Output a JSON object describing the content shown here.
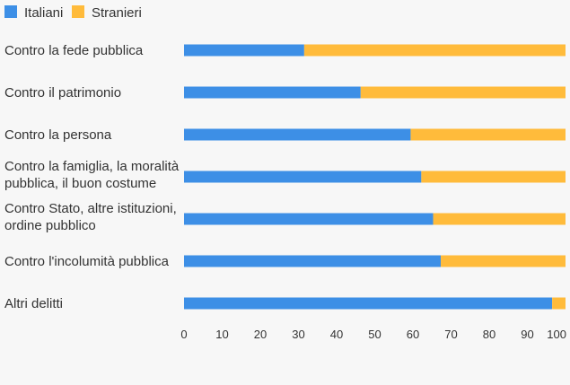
{
  "chart_data": {
    "type": "bar",
    "orientation": "horizontal",
    "stacked": true,
    "categories": [
      [
        "Contro la fede pubblica"
      ],
      [
        "Contro il patrimonio"
      ],
      [
        "Contro la persona"
      ],
      [
        "Contro la famiglia, la moralità",
        "pubblica, il buon costume"
      ],
      [
        "Contro Stato, altre istituzioni,",
        "ordine pubblico"
      ],
      [
        "Contro l'incolumità pubblica"
      ],
      [
        "Altri delitti"
      ]
    ],
    "series": [
      {
        "name": "Italiani",
        "color": "#3d8fe6",
        "values": [
          31.5,
          46.3,
          59.4,
          62.2,
          65.3,
          67.3,
          96.5
        ]
      },
      {
        "name": "Stranieri",
        "color": "#ffbb3b",
        "values": [
          68.5,
          53.7,
          40.6,
          37.8,
          34.7,
          32.7,
          3.5
        ]
      }
    ],
    "xlim": [
      0,
      100
    ],
    "xticks": [
      0,
      10,
      20,
      30,
      40,
      50,
      60,
      70,
      80,
      90,
      100
    ],
    "legend_position": "top-left",
    "grid": false
  }
}
